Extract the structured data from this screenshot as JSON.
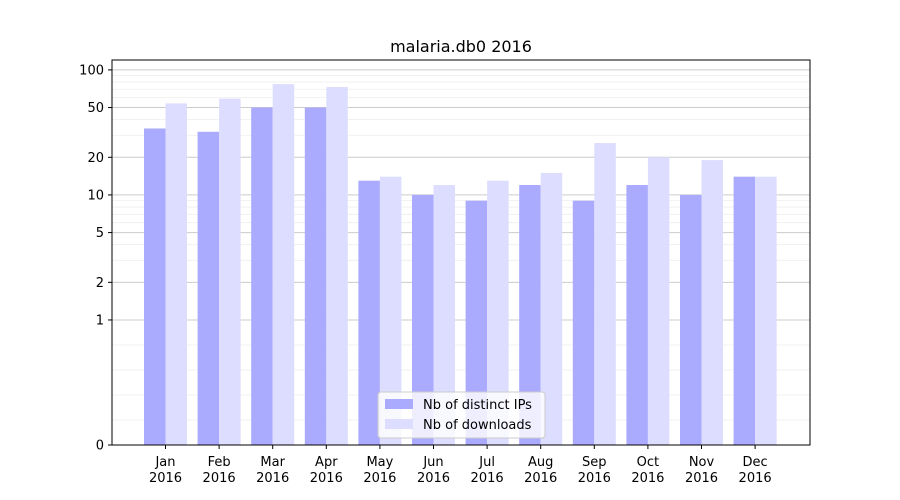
{
  "chart_data": {
    "type": "bar",
    "title": "malaria.db0 2016",
    "xlabel": "",
    "ylabel": "",
    "y_scale": "symlog",
    "ylim": [
      0,
      120
    ],
    "yticks": [
      0,
      1,
      2,
      5,
      10,
      20,
      50,
      100
    ],
    "grid": true,
    "legend_position": "bottom-center",
    "categories": [
      "Jan\n2016",
      "Feb\n2016",
      "Mar\n2016",
      "Apr\n2016",
      "May\n2016",
      "Jun\n2016",
      "Jul\n2016",
      "Aug\n2016",
      "Sep\n2016",
      "Oct\n2016",
      "Nov\n2016",
      "Dec\n2016"
    ],
    "series": [
      {
        "name": "Nb of distinct IPs",
        "color": "#aaaaff",
        "values": [
          34,
          32,
          50,
          50,
          13,
          10,
          9,
          12,
          9,
          12,
          10,
          14
        ]
      },
      {
        "name": "Nb of downloads",
        "color": "#ddddff",
        "values": [
          54,
          59,
          77,
          73,
          14,
          12,
          13,
          15,
          26,
          20,
          19,
          14
        ]
      }
    ]
  }
}
